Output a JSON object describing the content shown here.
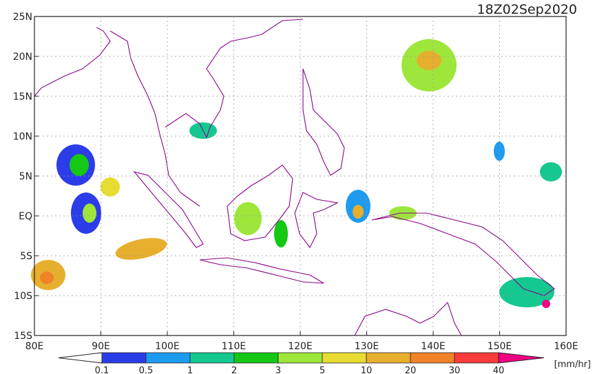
{
  "header": {
    "title": "18Z02Sep2020"
  },
  "axes": {
    "x_labels": [
      "80E",
      "90E",
      "100E",
      "110E",
      "120E",
      "130E",
      "140E",
      "150E",
      "160E"
    ],
    "y_labels": [
      "25N",
      "20N",
      "15N",
      "10N",
      "5N",
      "EQ",
      "5S",
      "10S",
      "15S"
    ]
  },
  "colorbar": {
    "labels": [
      "0.1",
      "0.5",
      "1",
      "2",
      "3",
      "5",
      "10",
      "20",
      "30",
      "40"
    ],
    "unit": "[mm/hr]",
    "colors": [
      "#2b3ce8",
      "#1e9bef",
      "#14c890",
      "#14c814",
      "#9ee63c",
      "#e6dc32",
      "#e6af2d",
      "#f08228",
      "#fa3c3c",
      "#f00082"
    ]
  }
}
